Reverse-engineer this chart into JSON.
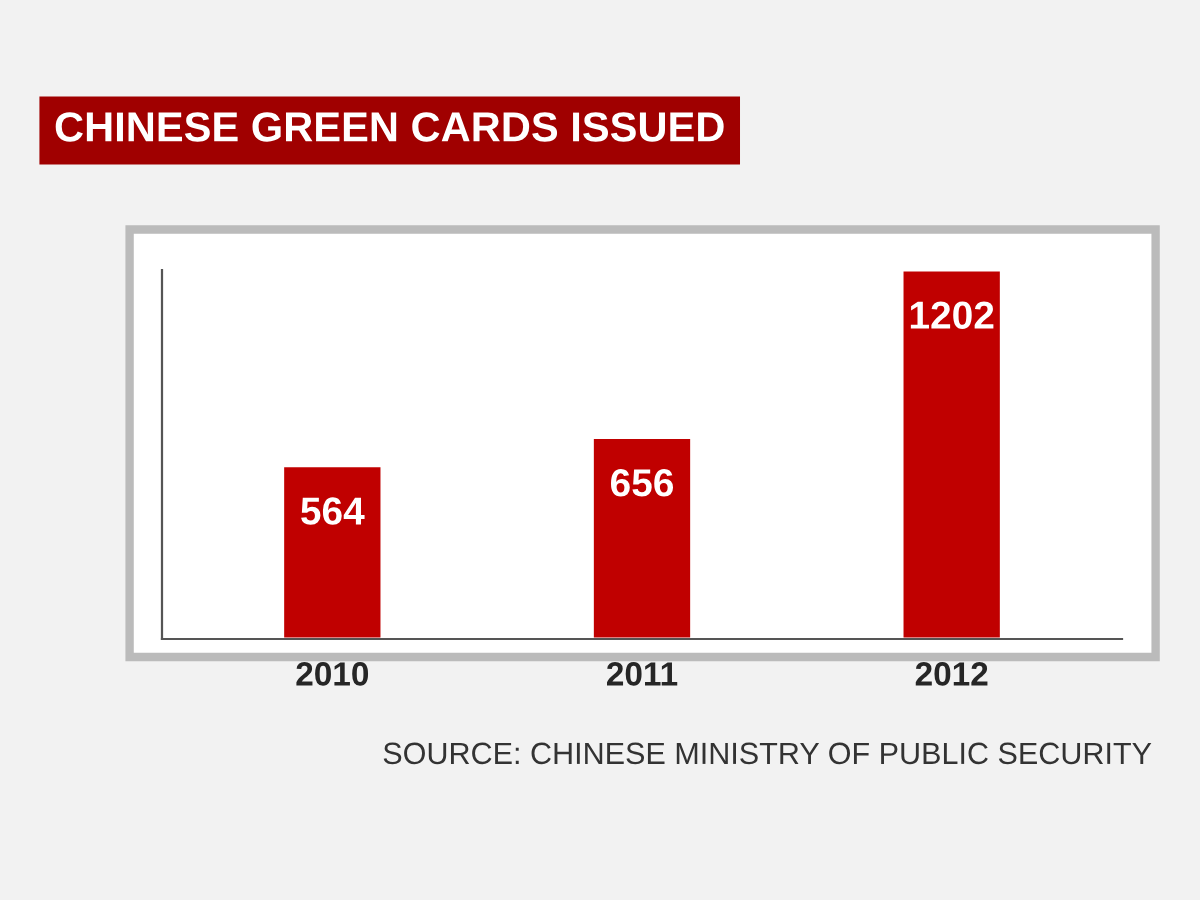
{
  "chart_data": {
    "type": "bar",
    "title": "CHINESE GREEN CARDS ISSUED",
    "categories": [
      "2010",
      "2011",
      "2012"
    ],
    "values": [
      564,
      656,
      1202
    ],
    "color": "#c00000",
    "data_labels": true,
    "tick_labels": "x",
    "annotations": [
      "SOURCE: CHINESE MINISTRY OF PUBLIC SECURITY"
    ]
  }
}
